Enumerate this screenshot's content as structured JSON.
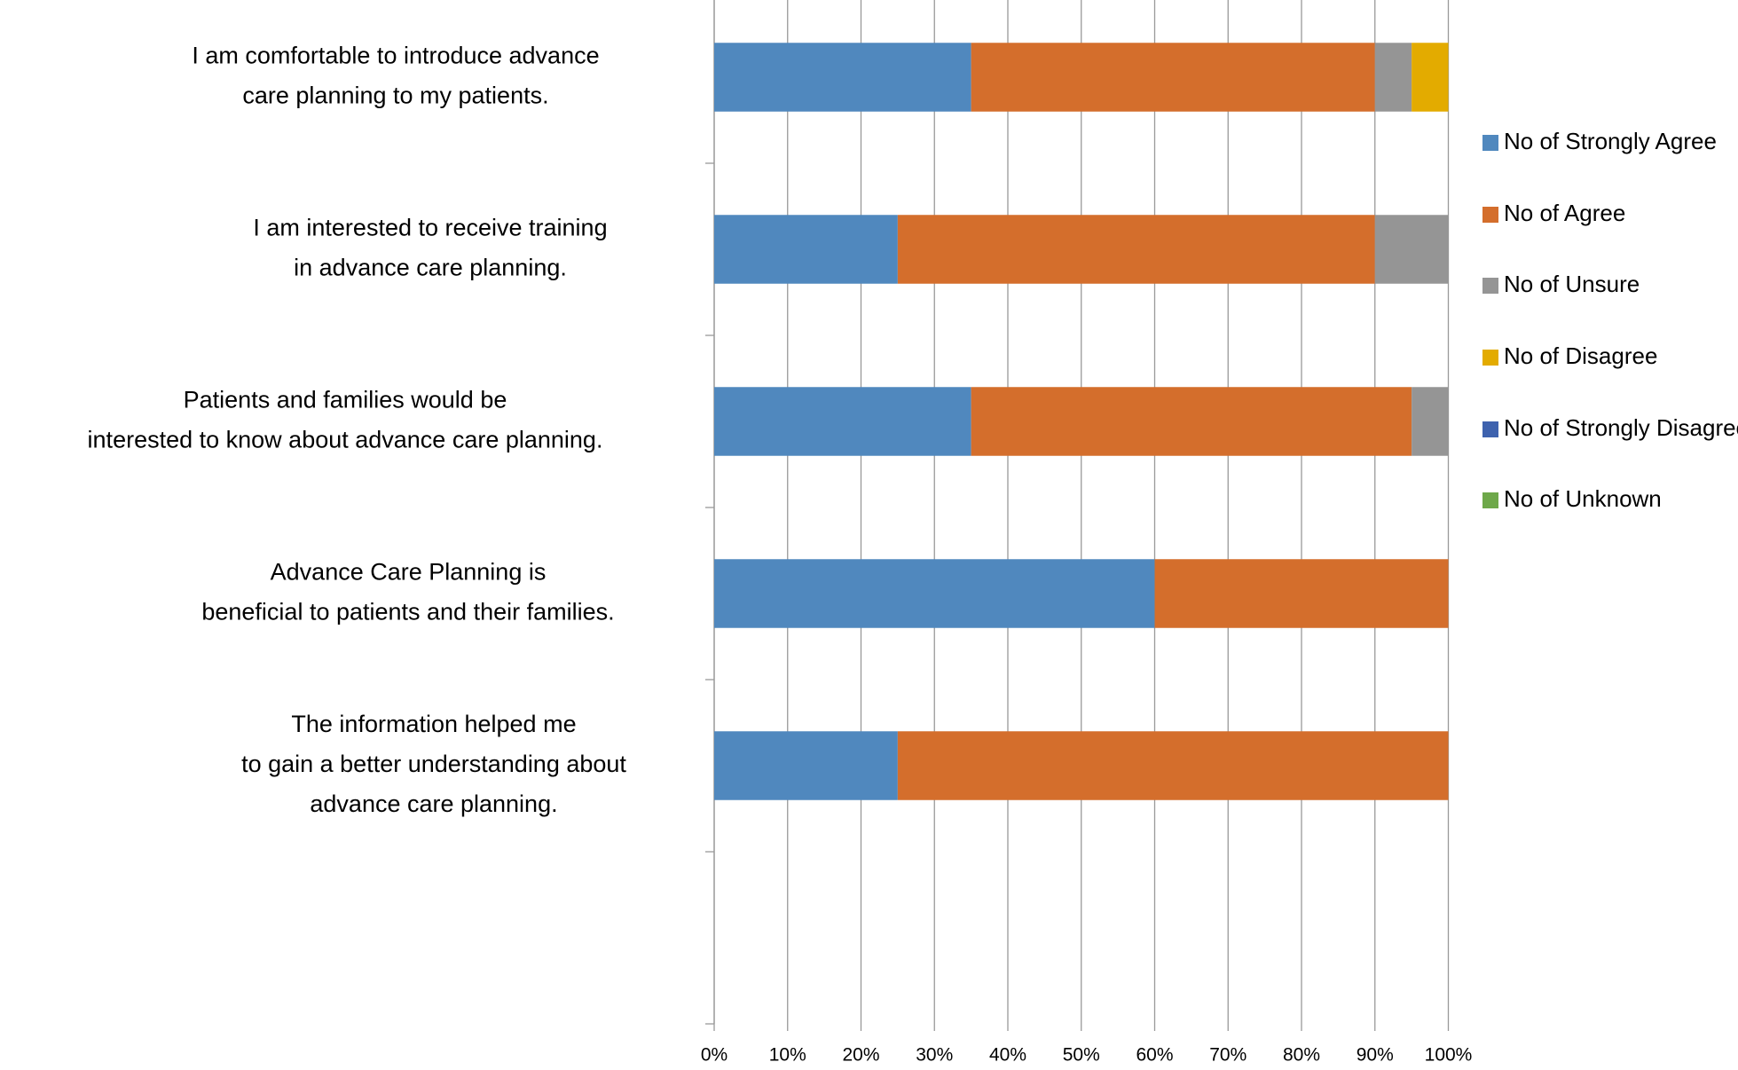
{
  "chart_data": {
    "type": "stacked-bar-horizontal",
    "categories": [
      [
        "I am comfortable to introduce advance",
        "care planning to my patients."
      ],
      [
        "I am interested to receive training",
        "in advance care planning."
      ],
      [
        "Patients and families would be",
        "interested to know about advance care planning."
      ],
      [
        "Advance Care Planning is",
        "beneficial to patients and their families."
      ],
      [
        "The information helped me",
        "to gain a better understanding about",
        "advance care planning."
      ],
      null
    ],
    "series": [
      {
        "name": "No of Strongly Agree",
        "color": "#5088be",
        "values": [
          35,
          25,
          35,
          60,
          25,
          null
        ]
      },
      {
        "name": "No of Agree",
        "color": "#d46e2c",
        "values": [
          55,
          65,
          60,
          40,
          75,
          null
        ]
      },
      {
        "name": "No of Unsure",
        "color": "#959595",
        "values": [
          5,
          10,
          5,
          0,
          0,
          null
        ]
      },
      {
        "name": "No of Disagree",
        "color": "#e3ab00",
        "values": [
          5,
          0,
          0,
          0,
          0,
          null
        ]
      },
      {
        "name": "No of Strongly Disagree",
        "color": "#3e62ae",
        "values": [
          0,
          0,
          0,
          0,
          0,
          null
        ]
      },
      {
        "name": "No of Unknown",
        "color": "#6ea84a",
        "values": [
          0,
          0,
          0,
          0,
          0,
          null
        ]
      }
    ],
    "xlim": [
      0,
      100
    ],
    "xticks": [
      {
        "value": 0,
        "label": "0%"
      },
      {
        "value": 10,
        "label": "10%"
      },
      {
        "value": 20,
        "label": "20%"
      },
      {
        "value": 30,
        "label": "30%"
      },
      {
        "value": 40,
        "label": "40%"
      },
      {
        "value": 50,
        "label": "50%"
      },
      {
        "value": 60,
        "label": "60%"
      },
      {
        "value": 70,
        "label": "70%"
      },
      {
        "value": 80,
        "label": "80%"
      },
      {
        "value": 90,
        "label": "90%"
      },
      {
        "value": 100,
        "label": "100%"
      }
    ],
    "grid": true,
    "legend": "right"
  }
}
